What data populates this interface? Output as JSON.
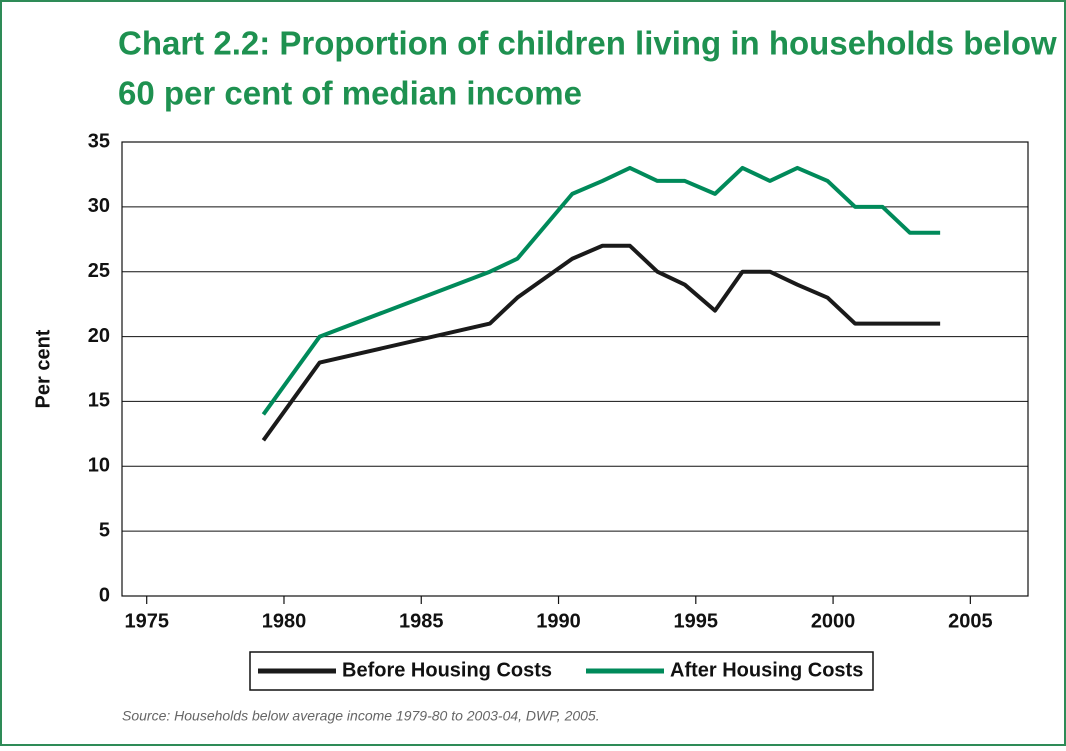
{
  "chart_data": {
    "type": "line",
    "title": "Chart 2.2: Proportion of children living in households below",
    "title_line2": "60 per cent of median income",
    "y_label": "Per cent",
    "source": "Source: Households below average income 1979-80 to 2003-04, DWP, 2005.",
    "x": [
      1979.25,
      1981.3,
      1987.5,
      1988.5,
      1990.5,
      1991.6,
      1992.6,
      1993.6,
      1994.6,
      1995.7,
      1996.7,
      1997.7,
      1998.7,
      1999.8,
      2000.8,
      2001.8,
      2002.8,
      2003.9
    ],
    "series": [
      {
        "name": "Before Housing Costs",
        "color": "#1a1a1a",
        "values": [
          12,
          18,
          21,
          23,
          26,
          27,
          27,
          25,
          24,
          22,
          25,
          25,
          24,
          23,
          21,
          21,
          21,
          21
        ]
      },
      {
        "name": "After Housing Costs",
        "color": "#008a5a",
        "values": [
          14,
          20,
          25,
          26,
          31,
          32,
          33,
          32,
          32,
          31,
          33,
          32,
          33,
          32,
          30,
          30,
          28,
          28
        ]
      }
    ],
    "xlim": [
      1974.1,
      2007.1
    ],
    "xticks": [
      1975,
      1980,
      1985,
      1990,
      1995,
      2000,
      2005
    ],
    "ylim": [
      0,
      35
    ],
    "yticks": [
      0,
      5,
      10,
      15,
      20,
      25,
      30,
      35
    ],
    "grid": true
  }
}
